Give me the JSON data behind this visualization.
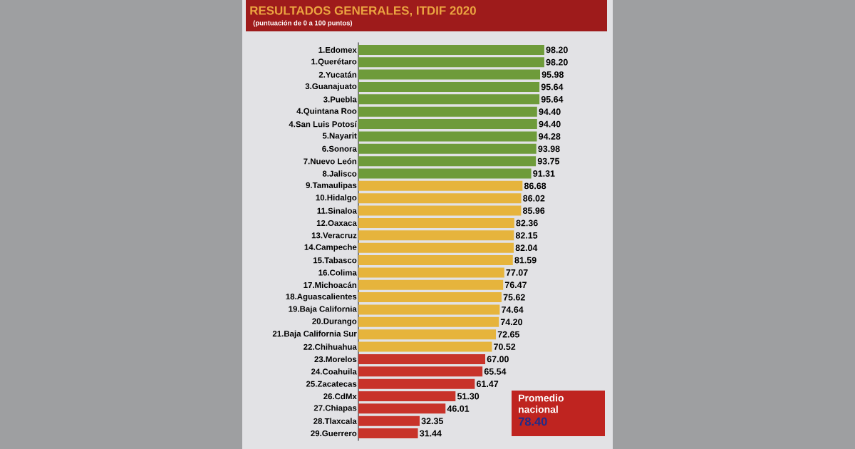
{
  "chart_data": {
    "type": "bar",
    "orientation": "horizontal",
    "title": "RESULTADOS GENERALES, ITDIF 2020",
    "subtitle": "(puntuación de 0 a 100 puntos)",
    "categories": [
      "1.Edomex",
      "1.Querétaro",
      "2.Yucatán",
      "3.Guanajuato",
      "3.Puebla",
      "4.Quintana Roo",
      "4.San Luis Potosí",
      "5.Nayarit",
      "6.Sonora",
      "7.Nuevo León",
      "8.Jalisco",
      "9.Tamaulipas",
      "10.Hidalgo",
      "11.Sinaloa",
      "12.Oaxaca",
      "13.Veracruz",
      "14.Campeche",
      "15.Tabasco",
      "16.Colima",
      "17.Michoacán",
      "18.Aguascalientes",
      "19.Baja California",
      "20.Durango",
      "21.Baja California Sur",
      "22.Chihuahua",
      "23.Morelos",
      "24.Coahuila",
      "25.Zacatecas",
      "26.CdMx",
      "27.Chiapas",
      "28.Tlaxcala",
      "29.Guerrero"
    ],
    "values": [
      98.2,
      98.2,
      95.98,
      95.64,
      95.64,
      94.4,
      94.4,
      94.28,
      93.98,
      93.75,
      91.31,
      86.68,
      86.02,
      85.96,
      82.36,
      82.15,
      82.04,
      81.59,
      77.07,
      76.47,
      75.62,
      74.64,
      74.2,
      72.65,
      70.52,
      67.0,
      65.54,
      61.47,
      51.3,
      46.01,
      32.35,
      31.44
    ],
    "value_labels": [
      "98.20",
      "98.20",
      "95.98",
      "95.64",
      "95.64",
      "94.40",
      "94.40",
      "94.28",
      "93.98",
      "93.75",
      "91.31",
      "86.68",
      "86.02",
      "85.96",
      "82.36",
      "82.15",
      "82.04",
      "81.59",
      "77.07",
      "76.47",
      "75.62",
      "74.64",
      "74.20",
      "72.65",
      "70.52",
      "67.00",
      "65.54",
      "61.47",
      "51.30",
      "46.01",
      "32.35",
      "31.44"
    ],
    "colors": [
      "#6e9b3a",
      "#6e9b3a",
      "#6e9b3a",
      "#6e9b3a",
      "#6e9b3a",
      "#6e9b3a",
      "#6e9b3a",
      "#6e9b3a",
      "#6e9b3a",
      "#6e9b3a",
      "#6e9b3a",
      "#e6b43c",
      "#e6b43c",
      "#e6b43c",
      "#e6b43c",
      "#e6b43c",
      "#e6b43c",
      "#e6b43c",
      "#e6b43c",
      "#e6b43c",
      "#e6b43c",
      "#e6b43c",
      "#e6b43c",
      "#e6b43c",
      "#e6b43c",
      "#c8332a",
      "#c8332a",
      "#c8332a",
      "#c8332a",
      "#c8332a",
      "#c8332a",
      "#c8332a"
    ],
    "tick_labels": "y",
    "annotations": [
      "Promedio nacional",
      "78.40"
    ]
  }
}
